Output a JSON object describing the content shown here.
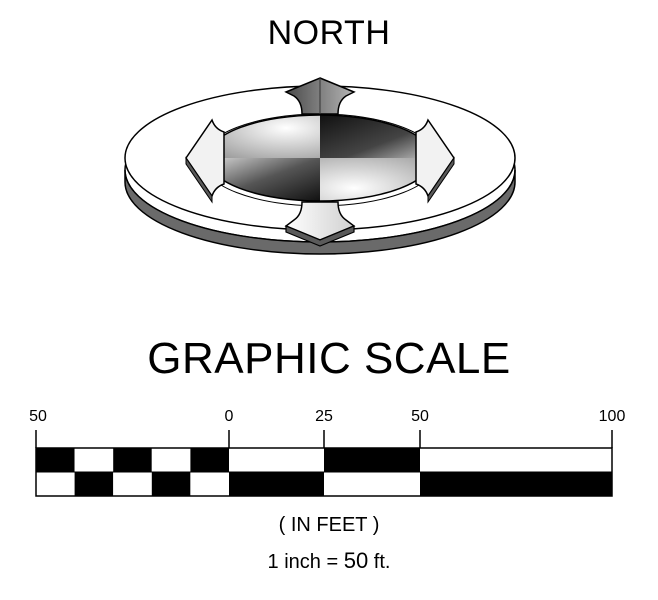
{
  "north_arrow": {
    "label": "NORTH"
  },
  "graphic_scale": {
    "title": "GRAPHIC SCALE",
    "ticks": [
      {
        "value": "50"
      },
      {
        "value": "0"
      },
      {
        "value": "25"
      },
      {
        "value": "50"
      },
      {
        "value": "100"
      }
    ],
    "units": "( IN FEET )",
    "ratio": {
      "prefix": "1 inch = ",
      "value": "50",
      "suffix": " ft."
    }
  },
  "colors": {
    "ink": "#000000",
    "paper": "#ffffff",
    "shadow": "#5a5a5a"
  }
}
